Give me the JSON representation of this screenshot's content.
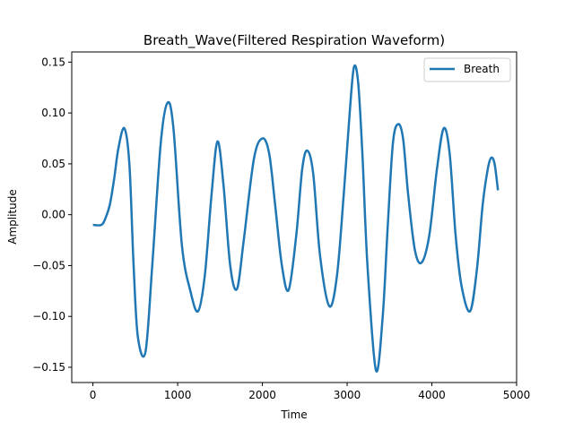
{
  "chart_data": {
    "type": "line",
    "title": "Breath_Wave(Filtered Respiration Waveform)",
    "xlabel": "Time",
    "ylabel": "Amplitude",
    "xlim": [
      -250,
      5000
    ],
    "ylim": [
      -0.165,
      0.16
    ],
    "xticks": [
      0,
      1000,
      2000,
      3000,
      4000,
      5000
    ],
    "xtick_labels": [
      "0",
      "1000",
      "2000",
      "3000",
      "4000",
      "5000"
    ],
    "yticks": [
      -0.15,
      -0.1,
      -0.05,
      0.0,
      0.05,
      0.1,
      0.15
    ],
    "ytick_labels": [
      "−0.15",
      "−0.10",
      "−0.05",
      "0.00",
      "0.05",
      "0.10",
      "0.15"
    ],
    "grid": false,
    "legend_position": "upper right",
    "series": [
      {
        "name": "Breath",
        "color": "#1f77b4",
        "x": [
          0,
          100,
          150,
          200,
          250,
          300,
          370,
          430,
          480,
          530,
          620,
          700,
          800,
          880,
          950,
          1050,
          1150,
          1240,
          1320,
          1400,
          1470,
          1540,
          1620,
          1700,
          1780,
          1900,
          2000,
          2080,
          2150,
          2230,
          2310,
          2400,
          2470,
          2530,
          2600,
          2680,
          2790,
          2880,
          2960,
          3030,
          3080,
          3130,
          3180,
          3240,
          3340,
          3420,
          3480,
          3540,
          3600,
          3660,
          3720,
          3800,
          3880,
          3970,
          4060,
          4140,
          4210,
          4280,
          4350,
          4450,
          4530,
          4600,
          4660,
          4700,
          4740,
          4780
        ],
        "y": [
          -0.01,
          -0.01,
          -0.003,
          0.01,
          0.035,
          0.065,
          0.085,
          0.05,
          -0.05,
          -0.12,
          -0.135,
          -0.05,
          0.07,
          0.11,
          0.085,
          -0.03,
          -0.075,
          -0.095,
          -0.06,
          0.02,
          0.072,
          0.03,
          -0.05,
          -0.073,
          -0.025,
          0.055,
          0.075,
          0.06,
          0.01,
          -0.05,
          -0.074,
          -0.02,
          0.045,
          0.063,
          0.04,
          -0.04,
          -0.09,
          -0.06,
          0.02,
          0.1,
          0.145,
          0.13,
          0.06,
          -0.05,
          -0.153,
          -0.1,
          -0.01,
          0.07,
          0.089,
          0.075,
          0.02,
          -0.035,
          -0.047,
          -0.02,
          0.045,
          0.085,
          0.06,
          -0.02,
          -0.07,
          -0.095,
          -0.055,
          0.01,
          0.045,
          0.056,
          0.05,
          0.024
        ]
      }
    ]
  }
}
